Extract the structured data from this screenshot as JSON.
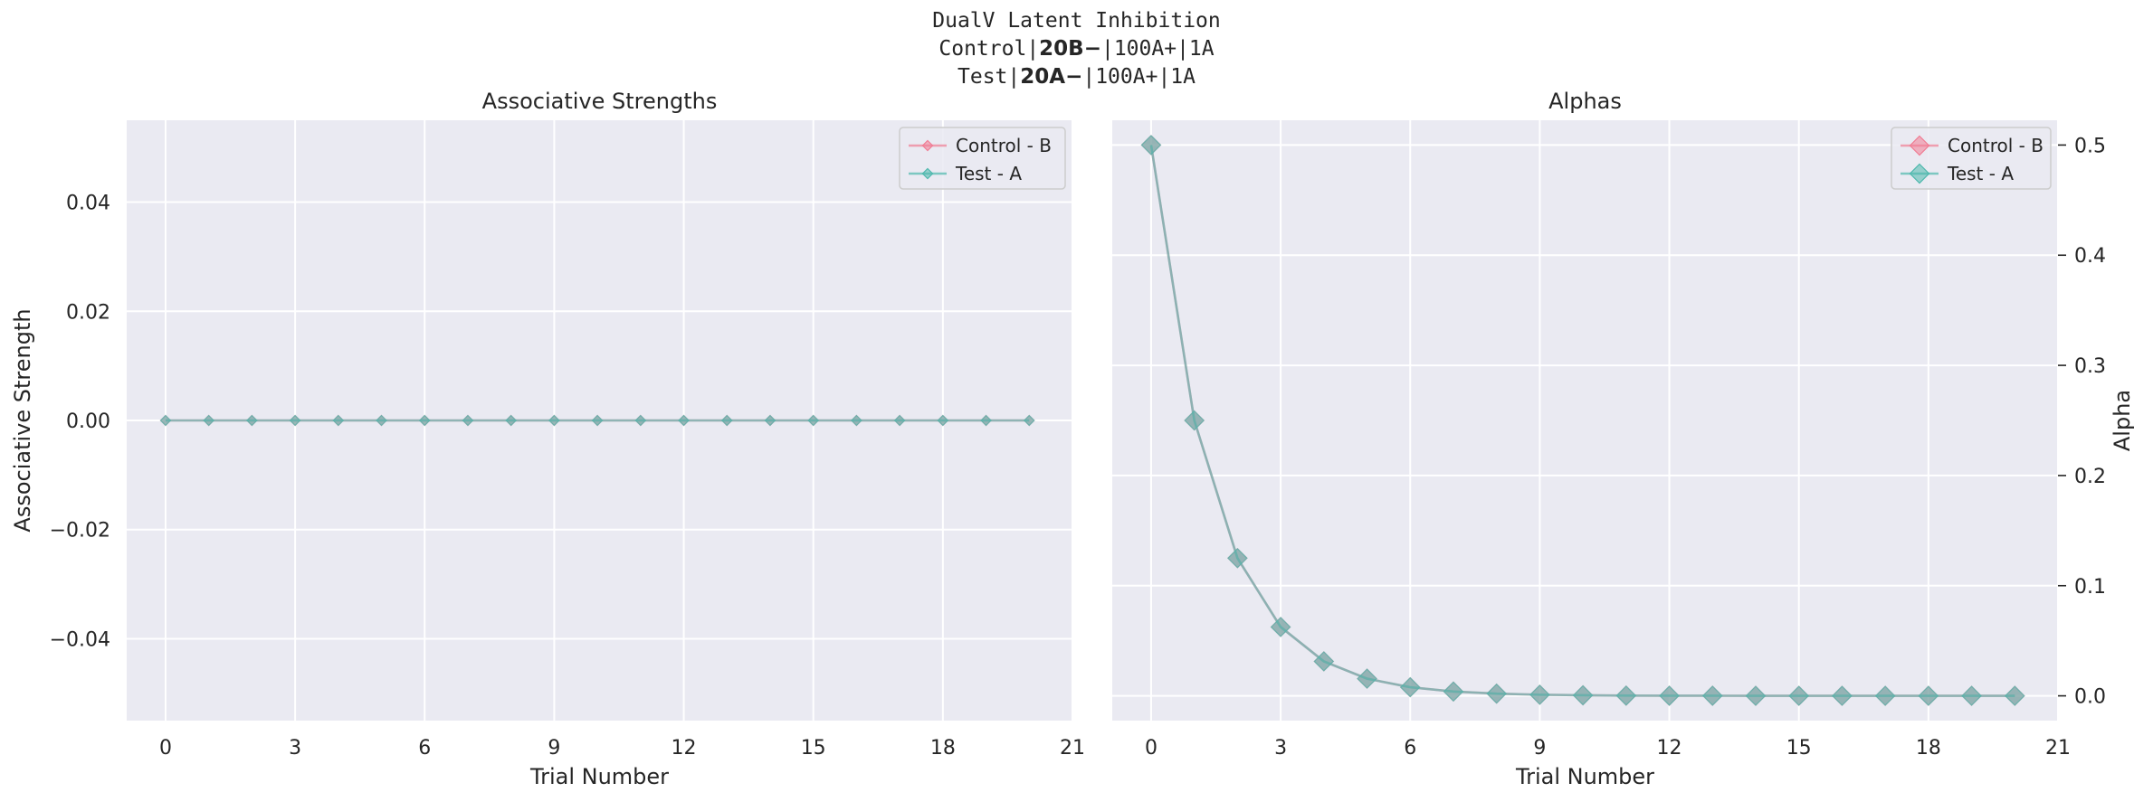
{
  "suptitle": {
    "line1": "DualV Latent Inhibition",
    "line2_prefix": "Control|",
    "line2_bold": "20B−",
    "line2_suffix": "|100A+|1A",
    "line3_prefix": "Test|",
    "line3_bold": "20A−",
    "line3_suffix": "|100A+|1A"
  },
  "colors": {
    "control": "#f07c93",
    "test": "#4db8ad",
    "overlap": "#6f9c9b",
    "plot_bg": "#eaeaf2",
    "grid": "#ffffff"
  },
  "chart_data": [
    {
      "type": "line",
      "title": "Associative Strengths",
      "xlabel": "Trial Number",
      "ylabel": "Associative Strength",
      "xlim": [
        -0.9,
        21
      ],
      "ylim": [
        -0.055,
        0.055
      ],
      "xticks": [
        "0",
        "3",
        "6",
        "9",
        "12",
        "15",
        "18",
        "21"
      ],
      "yticks": [
        "0.04",
        "0.02",
        "0.00",
        "−0.02",
        "−0.04"
      ],
      "ytick_values": [
        0.04,
        0.02,
        0.0,
        -0.02,
        -0.04
      ],
      "grid": true,
      "legend_position": "top-right",
      "marker": "diamond-small",
      "x": [
        0,
        1,
        2,
        3,
        4,
        5,
        6,
        7,
        8,
        9,
        10,
        11,
        12,
        13,
        14,
        15,
        16,
        17,
        18,
        19,
        20
      ],
      "series": [
        {
          "name": "Control - B",
          "values": [
            0,
            0,
            0,
            0,
            0,
            0,
            0,
            0,
            0,
            0,
            0,
            0,
            0,
            0,
            0,
            0,
            0,
            0,
            0,
            0,
            0
          ]
        },
        {
          "name": "Test - A",
          "values": [
            0,
            0,
            0,
            0,
            0,
            0,
            0,
            0,
            0,
            0,
            0,
            0,
            0,
            0,
            0,
            0,
            0,
            0,
            0,
            0,
            0
          ]
        }
      ]
    },
    {
      "type": "line",
      "title": "Alphas",
      "xlabel": "Trial Number",
      "ylabel": "Alpha",
      "xlim": [
        -0.9,
        21
      ],
      "ylim": [
        -0.0225,
        0.5225
      ],
      "xticks": [
        "0",
        "3",
        "6",
        "9",
        "12",
        "15",
        "18",
        "21"
      ],
      "yticks": [
        "0.5",
        "0.4",
        "0.3",
        "0.2",
        "0.1",
        "0.0"
      ],
      "ytick_values": [
        0.5,
        0.4,
        0.3,
        0.2,
        0.1,
        0.0
      ],
      "yaxis_side": "right",
      "grid": true,
      "legend_position": "top-right",
      "marker": "diamond-large",
      "x": [
        0,
        1,
        2,
        3,
        4,
        5,
        6,
        7,
        8,
        9,
        10,
        11,
        12,
        13,
        14,
        15,
        16,
        17,
        18,
        19,
        20
      ],
      "series": [
        {
          "name": "Control - B",
          "values": [
            0.5,
            0.25,
            0.125,
            0.0625,
            0.0313,
            0.0156,
            0.0078,
            0.0039,
            0.002,
            0.001,
            0.0005,
            0.0002,
            0.0001,
            0.0001,
            0,
            0,
            0,
            0,
            0,
            0,
            0
          ]
        },
        {
          "name": "Test - A",
          "values": [
            0.5,
            0.25,
            0.125,
            0.0625,
            0.0313,
            0.0156,
            0.0078,
            0.0039,
            0.002,
            0.001,
            0.0005,
            0.0002,
            0.0001,
            0.0001,
            0,
            0,
            0,
            0,
            0,
            0,
            0
          ]
        }
      ]
    }
  ]
}
